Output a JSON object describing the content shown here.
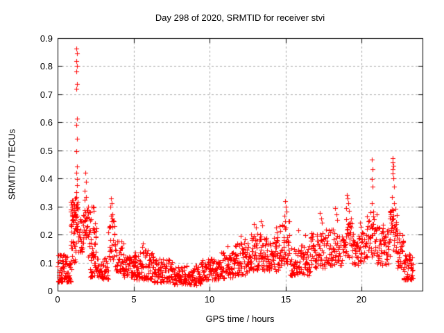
{
  "background": "#ffffff",
  "chart_data": {
    "type": "scatter",
    "title": "Day 298 of 2020, SRMTID for receiver stvi",
    "xlabel": "GPS time / hours",
    "ylabel": "SRMTID / TECUs",
    "xlim": [
      0,
      24
    ],
    "ylim": [
      0,
      0.9
    ],
    "xticks": [
      0,
      5,
      10,
      15,
      20
    ],
    "yticks": [
      0,
      0.1,
      0.2,
      0.3,
      0.4,
      0.5,
      0.6,
      0.7,
      0.8,
      0.9
    ],
    "grid": {
      "show": true,
      "color": "#a8a8a8",
      "style": "dashed",
      "x_lines": [
        5,
        10,
        15,
        20
      ],
      "y_lines": [
        0.1,
        0.2,
        0.3,
        0.4,
        0.5,
        0.6,
        0.7,
        0.8
      ]
    },
    "legend": {
      "show": false
    },
    "axis_color": "#000000",
    "marker": {
      "shape": "plus",
      "color": "#ff0000",
      "size": 7
    },
    "series": [
      {
        "name": "SRMTID",
        "outlier_points": [
          [
            1.25,
            0.862
          ],
          [
            1.27,
            0.846
          ],
          [
            1.24,
            0.818
          ],
          [
            1.26,
            0.801
          ],
          [
            1.25,
            0.782
          ],
          [
            1.27,
            0.737
          ],
          [
            1.25,
            0.719
          ],
          [
            1.26,
            0.613
          ],
          [
            1.24,
            0.59
          ],
          [
            1.26,
            0.541
          ],
          [
            1.25,
            0.497
          ],
          [
            1.27,
            0.443
          ],
          [
            1.24,
            0.421
          ],
          [
            1.26,
            0.398
          ],
          [
            1.28,
            0.376
          ],
          [
            1.23,
            0.352
          ],
          [
            1.22,
            0.335
          ],
          [
            1.83,
            0.42
          ],
          [
            1.87,
            0.389
          ],
          [
            1.8,
            0.357
          ],
          [
            1.89,
            0.335
          ],
          [
            1.76,
            0.325
          ],
          [
            2.32,
            0.3
          ],
          [
            2.36,
            0.285
          ],
          [
            3.5,
            0.33
          ],
          [
            3.55,
            0.312
          ],
          [
            3.47,
            0.298
          ],
          [
            3.6,
            0.272
          ],
          [
            5.62,
            0.168
          ],
          [
            5.55,
            0.155
          ],
          [
            11.2,
            0.158
          ],
          [
            12.05,
            0.195
          ],
          [
            12.3,
            0.182
          ],
          [
            12.92,
            0.238
          ],
          [
            13.05,
            0.225
          ],
          [
            13.38,
            0.248
          ],
          [
            13.45,
            0.232
          ],
          [
            14.35,
            0.225
          ],
          [
            14.42,
            0.208
          ],
          [
            14.95,
            0.318
          ],
          [
            15.02,
            0.298
          ],
          [
            15.06,
            0.282
          ],
          [
            14.9,
            0.268
          ],
          [
            15.82,
            0.215
          ],
          [
            16.28,
            0.198
          ],
          [
            17.25,
            0.278
          ],
          [
            17.32,
            0.258
          ],
          [
            17.4,
            0.242
          ],
          [
            18.25,
            0.295
          ],
          [
            18.33,
            0.272
          ],
          [
            18.4,
            0.252
          ],
          [
            19.02,
            0.342
          ],
          [
            19.08,
            0.33
          ],
          [
            19.12,
            0.312
          ],
          [
            18.97,
            0.295
          ],
          [
            19.18,
            0.285
          ],
          [
            19.9,
            0.242
          ],
          [
            19.95,
            0.228
          ],
          [
            20.68,
            0.468
          ],
          [
            20.7,
            0.432
          ],
          [
            20.66,
            0.398
          ],
          [
            20.72,
            0.37
          ],
          [
            20.69,
            0.312
          ],
          [
            20.63,
            0.232
          ],
          [
            20.75,
            0.238
          ],
          [
            21.4,
            0.235
          ],
          [
            22.02,
            0.472
          ],
          [
            22.05,
            0.458
          ],
          [
            22.08,
            0.446
          ],
          [
            22.03,
            0.432
          ],
          [
            22.06,
            0.418
          ],
          [
            22.1,
            0.4
          ],
          [
            22.12,
            0.372
          ],
          [
            22.0,
            0.335
          ],
          [
            22.14,
            0.312
          ],
          [
            22.09,
            0.288
          ],
          [
            22.48,
            0.205
          ]
        ],
        "bands_schema": [
          "x0",
          "x1",
          "y_min",
          "y_max",
          "count",
          "low_bias"
        ],
        "density_bands": [
          [
            0.02,
            0.9,
            0.03,
            0.13,
            85,
            1.6
          ],
          [
            0.85,
            1.35,
            0.2,
            0.33,
            52,
            1.0
          ],
          [
            0.88,
            1.25,
            0.1,
            0.2,
            18,
            1.0
          ],
          [
            1.35,
            1.65,
            0.13,
            0.26,
            24,
            1.2
          ],
          [
            1.65,
            2.05,
            0.17,
            0.3,
            28,
            1.0
          ],
          [
            2.0,
            2.55,
            0.12,
            0.3,
            38,
            1.4
          ],
          [
            2.1,
            2.9,
            0.05,
            0.14,
            42,
            1.3
          ],
          [
            2.9,
            3.35,
            0.04,
            0.12,
            32,
            1.3
          ],
          [
            3.35,
            3.8,
            0.11,
            0.27,
            32,
            1.2
          ],
          [
            3.8,
            4.35,
            0.07,
            0.18,
            38,
            1.4
          ],
          [
            4.3,
            5.1,
            0.05,
            0.13,
            52,
            1.5
          ],
          [
            5.0,
            6.3,
            0.04,
            0.145,
            88,
            1.5
          ],
          [
            6.3,
            7.6,
            0.03,
            0.115,
            88,
            1.5
          ],
          [
            7.6,
            9.4,
            0.02,
            0.09,
            115,
            1.4
          ],
          [
            9.4,
            10.6,
            0.035,
            0.115,
            82,
            1.4
          ],
          [
            10.6,
            11.6,
            0.045,
            0.14,
            68,
            1.3
          ],
          [
            11.6,
            12.6,
            0.055,
            0.17,
            68,
            1.3
          ],
          [
            12.6,
            13.6,
            0.07,
            0.205,
            68,
            1.3
          ],
          [
            13.6,
            14.6,
            0.07,
            0.19,
            68,
            1.3
          ],
          [
            14.6,
            15.25,
            0.09,
            0.25,
            42,
            1.1
          ],
          [
            15.25,
            16.6,
            0.055,
            0.165,
            85,
            1.4
          ],
          [
            16.6,
            17.6,
            0.08,
            0.205,
            62,
            1.2
          ],
          [
            17.6,
            18.7,
            0.09,
            0.225,
            68,
            1.2
          ],
          [
            18.75,
            19.35,
            0.11,
            0.27,
            40,
            1.0
          ],
          [
            19.35,
            20.35,
            0.09,
            0.215,
            62,
            1.2
          ],
          [
            20.35,
            21.05,
            0.12,
            0.29,
            45,
            1.1
          ],
          [
            21.05,
            21.85,
            0.09,
            0.225,
            55,
            1.2
          ],
          [
            21.85,
            22.35,
            0.14,
            0.3,
            40,
            1.0
          ],
          [
            22.3,
            22.75,
            0.08,
            0.2,
            28,
            1.3
          ],
          [
            22.72,
            23.38,
            0.04,
            0.13,
            52,
            1.5
          ]
        ]
      }
    ]
  }
}
